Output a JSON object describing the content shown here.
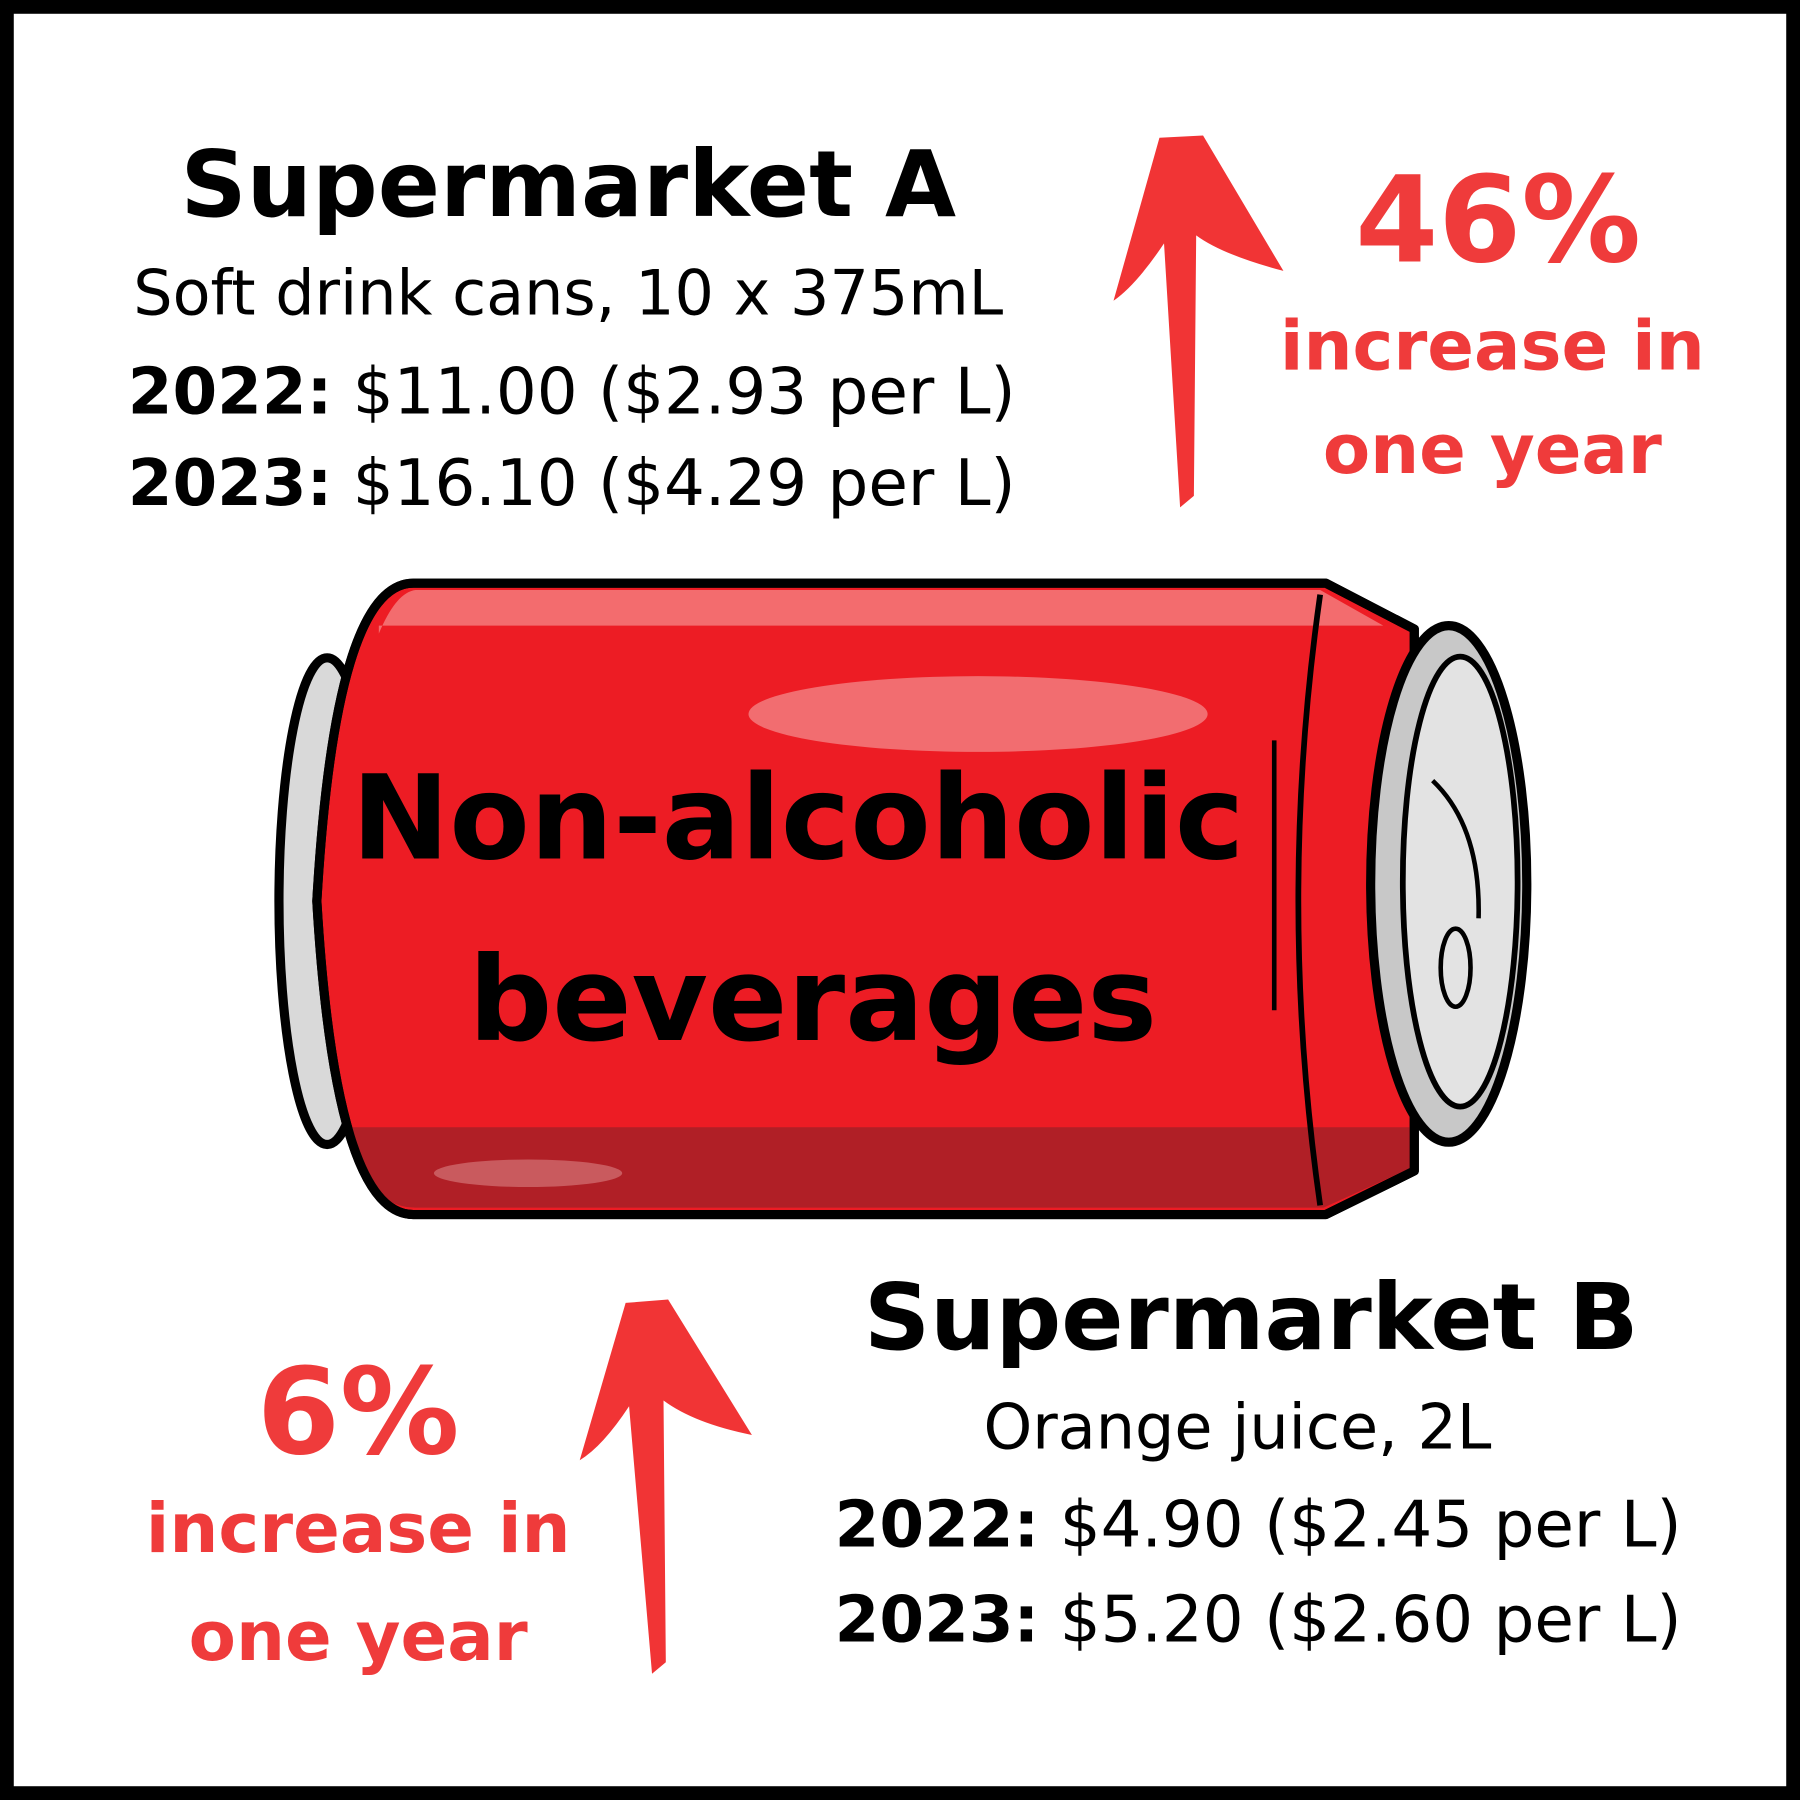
{
  "title": "Non-alcoholic beverages",
  "title_lines": [
    "Non-alcoholic",
    "beverages"
  ],
  "panels": [
    {
      "name": "Supermarket A",
      "product": "Soft drink cans, 10 x 375mL",
      "rows": [
        {
          "year": "2022:",
          "price": "$11.00 ($2.93 per L)"
        },
        {
          "year": "2023:",
          "price": "$16.10 ($4.29 per L)"
        }
      ],
      "change": "46%",
      "change_text": [
        "increase in",
        "one year"
      ]
    },
    {
      "name": "Supermarket B",
      "product": "Orange juice, 2L",
      "rows": [
        {
          "year": "2022:",
          "price": "$4.90 ($2.45 per L)"
        },
        {
          "year": "2023:",
          "price": "$5.20 ($2.60 per L)"
        }
      ],
      "change": "6%",
      "change_text": [
        "increase in",
        "one year"
      ]
    }
  ]
}
